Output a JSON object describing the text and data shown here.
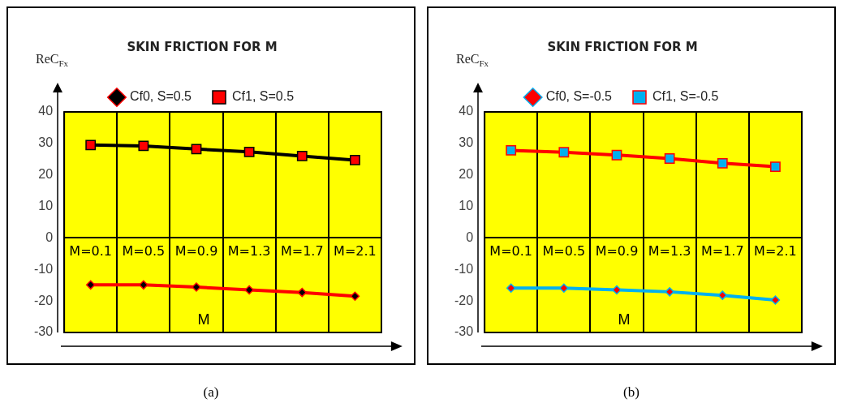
{
  "chart_data": [
    {
      "type": "line",
      "title": "SKIN FRICTION FOR M",
      "xlabel": "M",
      "ylabel": "ReC$_{Fx}$",
      "categories": [
        "M=0.1",
        "M=0.5",
        "M=0.9",
        "M=1.3",
        "M=1.7",
        "M=2.1"
      ],
      "series": [
        {
          "name": "Cf0, S=0.5",
          "color": "#ff0000",
          "colors": [
            "#000000",
            "#000000",
            "#000000",
            "#000000",
            "#000000",
            "#000000"
          ],
          "marker": "diamond",
          "values": [
            -14.9,
            -14.9,
            -15.6,
            -16.5,
            -17.3,
            -18.5
          ]
        },
        {
          "name": "Cf1, S=0.5",
          "color": "#000000",
          "colors": [
            "#ff0000",
            "#ff0000",
            "#ff0000",
            "#ff0000",
            "#ff0000",
            "#ff0000"
          ],
          "marker": "square",
          "values": [
            29.5,
            29.2,
            28.2,
            27.3,
            26.0,
            24.7
          ]
        }
      ],
      "ylim": [
        -30,
        40
      ],
      "yticks": [
        -30,
        -20,
        -10,
        0,
        10,
        20,
        30,
        40
      ],
      "grid": "x",
      "legend": "top",
      "annotations": [
        "(a)"
      ]
    },
    {
      "type": "line",
      "title": "SKIN FRICTION FOR M",
      "xlabel": "M",
      "ylabel": "ReC$_{Fx}$",
      "categories": [
        "M=0.1",
        "M=0.5",
        "M=0.9",
        "M=1.3",
        "M=1.7",
        "M=2.1"
      ],
      "series": [
        {
          "name": "Cf0, S=-0.5",
          "color": "#00b0f0",
          "colors": [
            "#ff0000",
            "#ff0000",
            "#ff0000",
            "#ff0000",
            "#ff0000",
            "#ff0000"
          ],
          "marker": "diamond",
          "values": [
            -15.9,
            -15.9,
            -16.5,
            -17.1,
            -18.2,
            -19.7
          ]
        },
        {
          "name": "Cf1, S=-0.5",
          "color": "#ff0000",
          "colors": [
            "#00b0f0",
            "#00b0f0",
            "#00b0f0",
            "#00b0f0",
            "#00b0f0",
            "#00b0f0"
          ],
          "marker": "square",
          "values": [
            27.8,
            27.2,
            26.3,
            25.2,
            23.7,
            22.6
          ]
        }
      ],
      "ylim": [
        -30,
        40
      ],
      "yticks": [
        -30,
        -20,
        -10,
        0,
        10,
        20,
        30,
        40
      ],
      "grid": "x",
      "legend": "top",
      "annotations": [
        "(b)"
      ]
    }
  ]
}
